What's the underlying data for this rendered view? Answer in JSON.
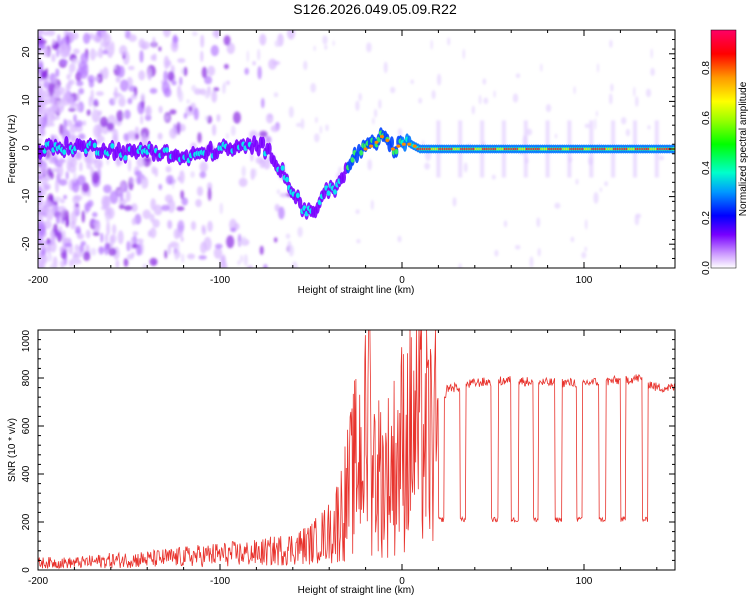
{
  "title": "S126.2026.049.05.09.R22",
  "colors": {
    "snr_line": "#e8332d",
    "axes": "#000000",
    "background": "#ffffff"
  },
  "chart_data": [
    {
      "type": "heatmap",
      "name": "spectrogram",
      "xlabel": "Height of straight line (km)",
      "ylabel": "Frequency (Hz)",
      "xlim": [
        -200,
        150
      ],
      "ylim": [
        -25,
        25
      ],
      "x_ticks": [
        -200,
        -100,
        0,
        100
      ],
      "x_tick_labels": [
        "-200",
        "-100",
        "0",
        "100"
      ],
      "y_ticks": [
        -20,
        -10,
        0,
        10,
        20
      ],
      "y_tick_labels": [
        "-20",
        "-10",
        "0",
        "10",
        "20"
      ],
      "ridge": {
        "x": [
          -200,
          -180,
          -160,
          -150,
          -140,
          -130,
          -120,
          -110,
          -100,
          -90,
          -80,
          -75,
          -70,
          -65,
          -60,
          -55,
          -50,
          -45,
          -40,
          -35,
          -30,
          -25,
          -20,
          -15,
          -10,
          -5,
          0,
          5,
          10,
          20,
          150
        ],
        "freq": [
          0,
          0.5,
          0,
          -1,
          0,
          -1,
          -2,
          -1,
          0,
          0,
          1,
          0,
          -2,
          -5,
          -9,
          -12,
          -14,
          -11,
          -8,
          -8,
          -4,
          -1,
          0,
          1,
          3,
          0,
          1,
          1,
          0,
          0,
          0
        ]
      },
      "colorbar": {
        "label": "Normalized spectral amplitude",
        "ticks": [
          0.0,
          0.2,
          0.4,
          0.6,
          0.8
        ],
        "tick_labels": [
          "0.0",
          "0.2",
          "0.4",
          "0.6",
          "0.8"
        ],
        "range": [
          0,
          0.95
        ]
      }
    },
    {
      "type": "line",
      "name": "snr",
      "xlabel": "Height of straight line (km)",
      "ylabel": "SNR (10 * v/v)",
      "xlim": [
        -200,
        150
      ],
      "ylim": [
        0,
        1000
      ],
      "x_ticks": [
        -200,
        -100,
        0,
        100
      ],
      "x_tick_labels": [
        "-200",
        "-100",
        "0",
        "100"
      ],
      "y_ticks": [
        0,
        200,
        400,
        600,
        800,
        1000
      ],
      "y_tick_labels": [
        "0",
        "200",
        "400",
        "600",
        "800",
        "1000"
      ],
      "envelope": {
        "x": [
          -200,
          -180,
          -160,
          -140,
          -120,
          -100,
          -80,
          -60,
          -50,
          -40,
          -35,
          -30,
          -25,
          -20,
          -15,
          -10,
          -5,
          0,
          5,
          10,
          15,
          20,
          25,
          30,
          40,
          60,
          80,
          100,
          120,
          130,
          140,
          150
        ],
        "y": [
          30,
          30,
          40,
          45,
          55,
          65,
          70,
          90,
          110,
          160,
          240,
          350,
          500,
          600,
          480,
          420,
          480,
          580,
          640,
          640,
          590,
          620,
          760,
          760,
          780,
          790,
          780,
          780,
          790,
          800,
          760,
          760
        ]
      },
      "dropouts": {
        "level": 210,
        "intervals": [
          [
            20,
            23
          ],
          [
            32,
            35
          ],
          [
            49,
            53
          ],
          [
            60,
            64
          ],
          [
            72,
            75
          ],
          [
            84,
            88
          ],
          [
            96,
            99
          ],
          [
            108,
            112
          ],
          [
            120,
            123
          ],
          [
            132,
            135
          ]
        ]
      },
      "spike": {
        "x": -18,
        "y": 1000
      }
    }
  ]
}
